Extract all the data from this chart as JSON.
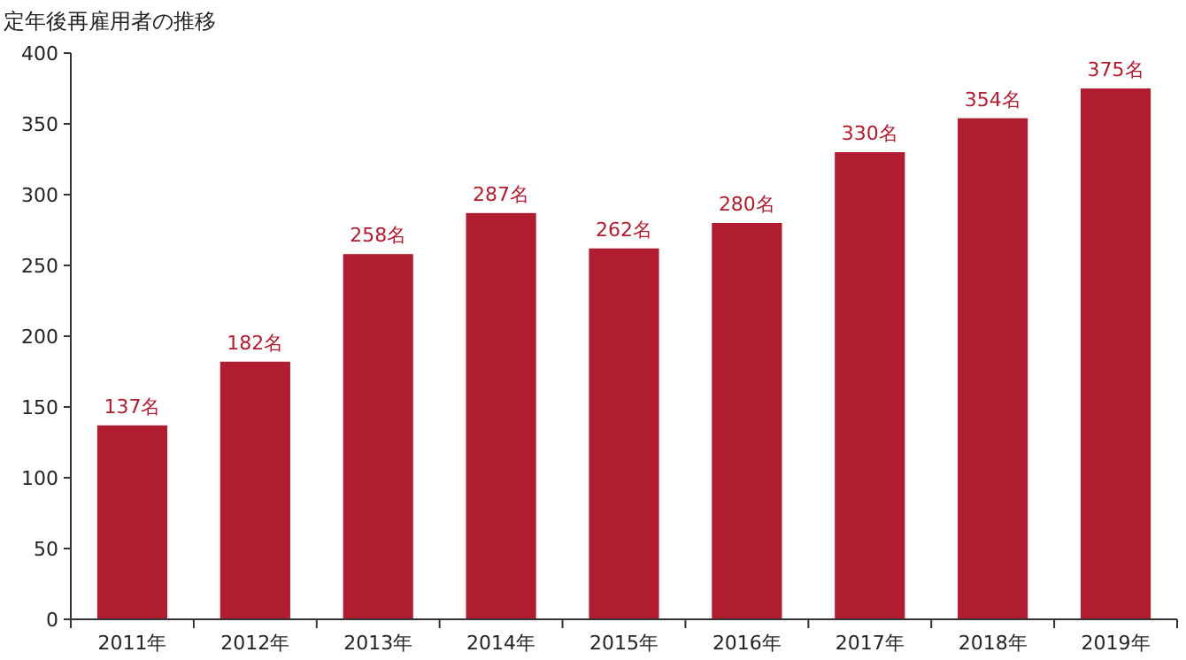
{
  "chart_data": {
    "type": "bar",
    "title": "定年後再雇用者の推移",
    "categories": [
      "2011年",
      "2012年",
      "2013年",
      "2014年",
      "2015年",
      "2016年",
      "2017年",
      "2018年",
      "2019年"
    ],
    "values": [
      137,
      182,
      258,
      287,
      262,
      280,
      330,
      354,
      375
    ],
    "value_labels": [
      "137名",
      "182名",
      "258名",
      "287名",
      "262名",
      "280名",
      "330名",
      "354名",
      "375名"
    ],
    "color": "#b01c30",
    "ylim": [
      0,
      400
    ],
    "yticks": [
      0,
      50,
      100,
      150,
      200,
      250,
      300,
      350,
      400
    ],
    "grid": false
  }
}
